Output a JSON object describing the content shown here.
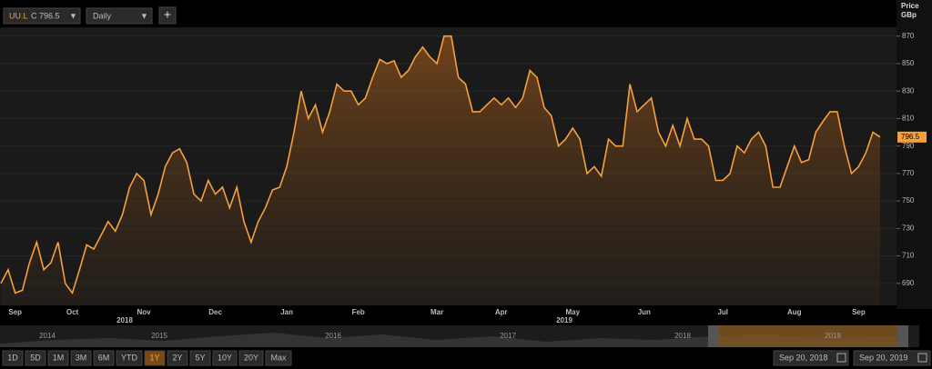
{
  "toolbar": {
    "ticker": "UU.L",
    "quote": "C 796.5",
    "interval": "Daily",
    "add": "+"
  },
  "chart_data": {
    "type": "line",
    "y_axis_title": "Price",
    "y_axis_unit": "GBp",
    "color": "#f5a040",
    "grid": true,
    "categories": [
      null,
      null,
      "Sep",
      null,
      null,
      null,
      null,
      null,
      null,
      null,
      "Oct",
      null,
      null,
      null,
      null,
      null,
      null,
      null,
      null,
      null,
      "Nov",
      null,
      null,
      null,
      null,
      null,
      null,
      null,
      null,
      null,
      "Dec",
      null,
      null,
      null,
      null,
      null,
      null,
      null,
      null,
      null,
      "Jan",
      null,
      null,
      null,
      null,
      null,
      null,
      null,
      null,
      null,
      "Feb",
      null,
      null,
      null,
      null,
      null,
      null,
      null,
      null,
      null,
      null,
      "Mar",
      null,
      null,
      null,
      null,
      null,
      null,
      null,
      null,
      "Apr",
      null,
      null,
      null,
      null,
      null,
      null,
      null,
      null,
      null,
      "May",
      null,
      null,
      null,
      null,
      null,
      null,
      null,
      null,
      null,
      "Jun",
      null,
      null,
      null,
      null,
      null,
      null,
      null,
      null,
      null,
      null,
      "Jul",
      null,
      null,
      null,
      null,
      null,
      null,
      null,
      null,
      null,
      "Aug",
      null,
      null,
      null,
      null,
      null,
      null,
      null,
      null,
      "Sep",
      null,
      null,
      null
    ],
    "year_labels": [
      "2018",
      "2019"
    ],
    "values": [
      690,
      700,
      683,
      685,
      705,
      720,
      700,
      705,
      720,
      690,
      683,
      700,
      718,
      715,
      725,
      735,
      728,
      740,
      760,
      770,
      765,
      740,
      755,
      775,
      785,
      788,
      778,
      755,
      750,
      765,
      755,
      760,
      745,
      760,
      735,
      720,
      735,
      745,
      758,
      760,
      775,
      800,
      830,
      810,
      820,
      800,
      815,
      835,
      830,
      830,
      820,
      825,
      840,
      853,
      850,
      852,
      840,
      845,
      855,
      862,
      855,
      850,
      870,
      870,
      840,
      835,
      815,
      815,
      820,
      825,
      820,
      825,
      818,
      825,
      845,
      840,
      818,
      812,
      790,
      795,
      803,
      795,
      770,
      775,
      768,
      795,
      790,
      790,
      835,
      815,
      820,
      825,
      800,
      790,
      805,
      790,
      810,
      795,
      795,
      790,
      765,
      765,
      770,
      790,
      785,
      795,
      800,
      790,
      760,
      760,
      775,
      790,
      778,
      780,
      800,
      808,
      815,
      815,
      790,
      770,
      775,
      785,
      800,
      796.5
    ],
    "ylim": [
      674,
      891
    ],
    "yticks": [
      690,
      710,
      730,
      750,
      770,
      790,
      810,
      830,
      850,
      870
    ]
  },
  "navigator": {
    "years": [
      "2014",
      "2015",
      "2016",
      "2017",
      "2018",
      "2019"
    ]
  },
  "range_buttons": [
    "1D",
    "5D",
    "1M",
    "3M",
    "6M",
    "YTD",
    "1Y",
    "2Y",
    "5Y",
    "10Y",
    "20Y",
    "Max"
  ],
  "date_range": {
    "from": "Sep 20, 2018",
    "to": "Sep 20, 2019"
  }
}
